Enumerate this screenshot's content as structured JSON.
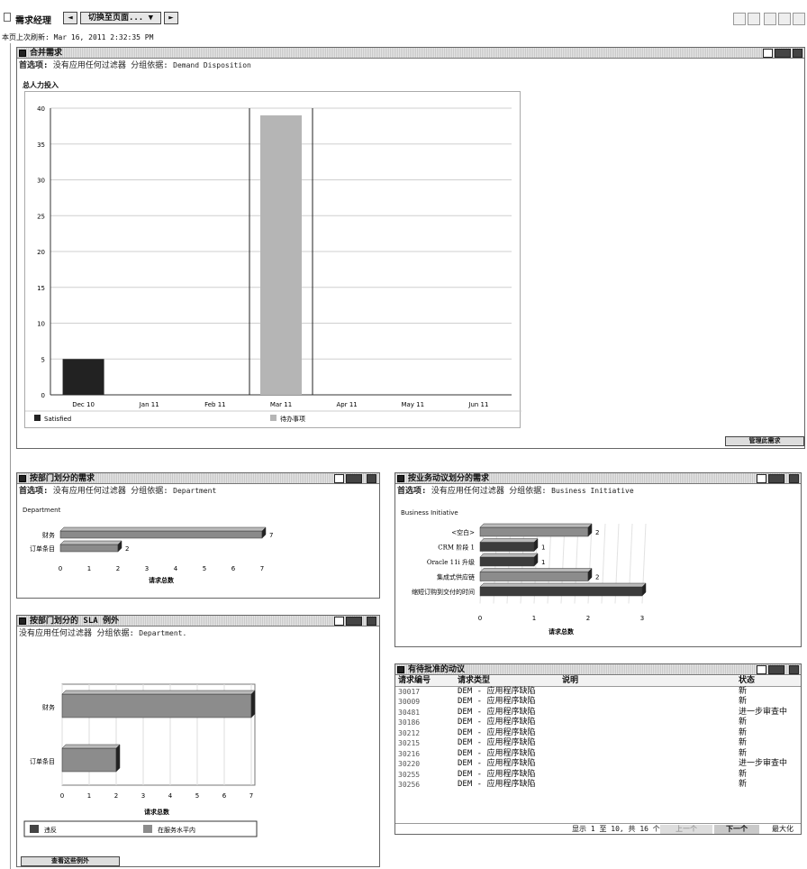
{
  "header": {
    "title": "需求经理",
    "page_switch_label": "切换至页面...",
    "refresh_text": "本页上次刷新: Mar 16, 2011 2:32:35 PM"
  },
  "merge": {
    "title": "合并需求",
    "filter_label": "首选项:",
    "filter_text": "没有应用任何过滤器",
    "group_label": "分组依据:",
    "group_value": "Demand Disposition",
    "chart_title": "总人力投入",
    "button": "管理此需求"
  },
  "dept": {
    "title": "按部门划分的需求",
    "filter_label": "首选项:",
    "filter_text": "没有应用任何过滤器",
    "group_label": "分组依据:",
    "group_value": "Department",
    "chart_label": "Department",
    "xlabel": "请求总数"
  },
  "biz": {
    "title": "按业务动议划分的需求",
    "filter_label": "首选项:",
    "filter_text": "没有应用任何过滤器",
    "group_label": "分组依据:",
    "group_value": "Business Initiative",
    "chart_label": "Business Initiative",
    "xlabel": "请求总数"
  },
  "sla": {
    "title": "按部门划分的 SLA 例外",
    "filter_text": "没有应用任何过滤器",
    "group_label": "分组依据:",
    "group_value": "Department.",
    "xlabel": "请求总数",
    "button": "查看这些例外"
  },
  "pending": {
    "title": "有待批准的动议",
    "columns": [
      "请求编号",
      "请求类型",
      "说明",
      "状态"
    ],
    "rows": [
      {
        "id": "30017",
        "type": "DEM - 应用程序缺陷",
        "desc": "",
        "status": "新"
      },
      {
        "id": "30009",
        "type": "DEM - 应用程序缺陷",
        "desc": "",
        "status": "新"
      },
      {
        "id": "30481",
        "type": "DEM - 应用程序缺陷",
        "desc": "",
        "status": "进一步审查中"
      },
      {
        "id": "30186",
        "type": "DEM - 应用程序缺陷",
        "desc": "",
        "status": "新"
      },
      {
        "id": "30212",
        "type": "DEM - 应用程序缺陷",
        "desc": "",
        "status": "新"
      },
      {
        "id": "30215",
        "type": "DEM - 应用程序缺陷",
        "desc": "",
        "status": "新"
      },
      {
        "id": "30216",
        "type": "DEM - 应用程序缺陷",
        "desc": "",
        "status": "新"
      },
      {
        "id": "30220",
        "type": "DEM - 应用程序缺陷",
        "desc": "",
        "status": "进一步审查中"
      },
      {
        "id": "30255",
        "type": "DEM - 应用程序缺陷",
        "desc": "",
        "status": "新"
      },
      {
        "id": "30256",
        "type": "DEM - 应用程序缺陷",
        "desc": "",
        "status": "新"
      }
    ],
    "pager_text": "显示 1 至 10, 共 16 个",
    "prev": "上一个",
    "next": "下一个",
    "maximize": "最大化"
  },
  "chart_data": [
    {
      "type": "bar",
      "title": "总人力投入",
      "categories": [
        "Dec 10",
        "Jan 11",
        "Feb 11",
        "Mar 11",
        "Apr 11",
        "May 11",
        "Jun 11"
      ],
      "series": [
        {
          "name": "Satisfied",
          "values": [
            5,
            0,
            0,
            0,
            0,
            0,
            0
          ],
          "color": "#222222"
        },
        {
          "name": "待办事项",
          "values": [
            0,
            0,
            0,
            39,
            0,
            0,
            0
          ],
          "color": "#b5b5b5"
        }
      ],
      "ylim": [
        0,
        40
      ],
      "yticks": [
        0,
        5,
        10,
        15,
        20,
        25,
        30,
        35,
        40
      ],
      "legend": "bottom"
    },
    {
      "type": "bar",
      "orientation": "horizontal",
      "title": "Department",
      "categories": [
        "财务",
        "订单条目"
      ],
      "values": [
        7,
        2
      ],
      "xticks": [
        0,
        1,
        2,
        3,
        4,
        5,
        6,
        7
      ],
      "xlabel": "请求总数"
    },
    {
      "type": "bar",
      "orientation": "horizontal",
      "title": "Business Initiative",
      "categories": [
        "<空白>",
        "CRM 阶段 1",
        "Oracle 11i 升级",
        "集成式供应链",
        "缩短订购到交付的时间"
      ],
      "values": [
        2,
        1,
        1,
        2,
        3
      ],
      "colors": [
        "#8c8c8c",
        "#3c3c3c",
        "#3c3c3c",
        "#8c8c8c",
        "#3c3c3c"
      ],
      "xticks": [
        0,
        1,
        2,
        3
      ],
      "xlabel": "请求总数"
    },
    {
      "type": "bar",
      "orientation": "horizontal",
      "title": "",
      "categories": [
        "财务",
        "订单条目"
      ],
      "series": [
        {
          "name": "违反",
          "values": [
            0,
            0
          ],
          "color": "#444444"
        },
        {
          "name": "在服务水平内",
          "values": [
            7,
            2
          ],
          "color": "#8c8c8c"
        }
      ],
      "xticks": [
        0,
        1,
        2,
        3,
        4,
        5,
        6,
        7
      ],
      "xlabel": "请求总数",
      "legend": "bottom"
    }
  ]
}
